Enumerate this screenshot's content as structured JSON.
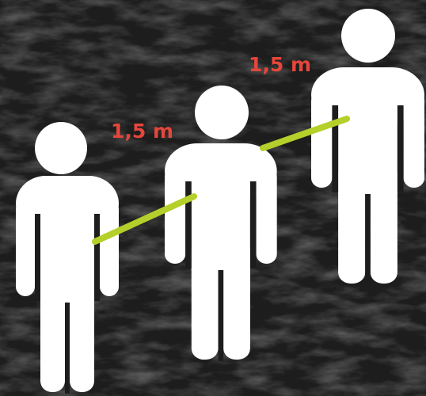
{
  "distance_labels": [
    "1,5 m",
    "1,5 m"
  ]
}
